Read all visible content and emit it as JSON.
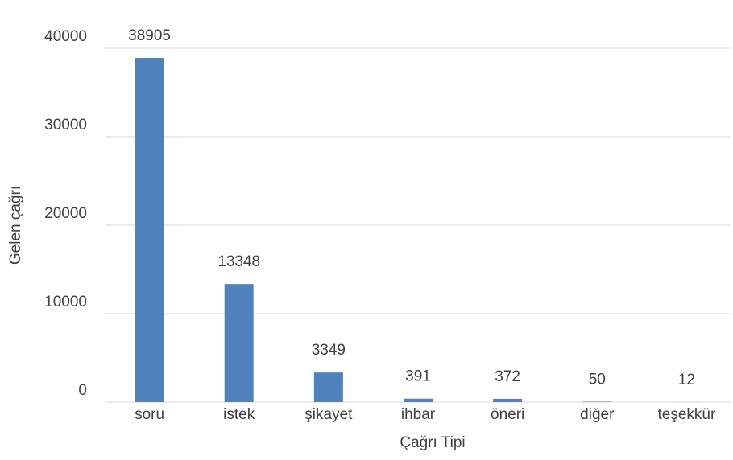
{
  "chart_data": {
    "type": "bar",
    "x_label": "Çağrı Tipi",
    "y_label": "Gelen çağrı",
    "categories": [
      "soru",
      "istek",
      "şikayet",
      "ihbar",
      "öneri",
      "diğer",
      "teşekkür"
    ],
    "values": [
      38905,
      13348,
      3349,
      391,
      372,
      50,
      12
    ],
    "color": "#4f81bd",
    "ylim": [
      0,
      40000
    ],
    "yticks": [
      0,
      10000,
      20000,
      30000,
      40000
    ],
    "grid": true
  }
}
